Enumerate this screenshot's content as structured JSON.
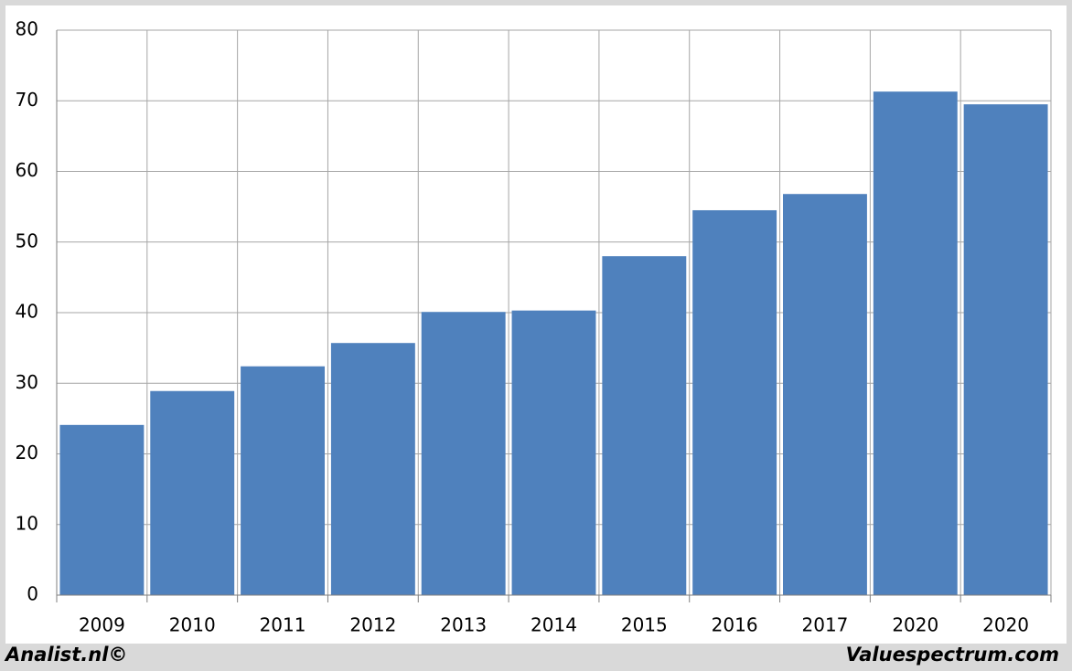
{
  "chart_data": {
    "type": "bar",
    "categories": [
      "2009",
      "2010",
      "2011",
      "2012",
      "2013",
      "2014",
      "2015",
      "2016",
      "2017",
      "2020",
      "2020"
    ],
    "values": [
      24.1,
      28.9,
      32.4,
      35.7,
      40.1,
      40.3,
      48.0,
      54.5,
      56.8,
      71.3,
      69.5
    ],
    "color": "#4f81bd",
    "ylim": [
      0,
      80
    ],
    "yticks": [
      0,
      10,
      20,
      30,
      40,
      50,
      60,
      70,
      80
    ],
    "grid": true
  },
  "footer": {
    "left": "Analist.nl©",
    "right": "Valuespectrum.com"
  }
}
